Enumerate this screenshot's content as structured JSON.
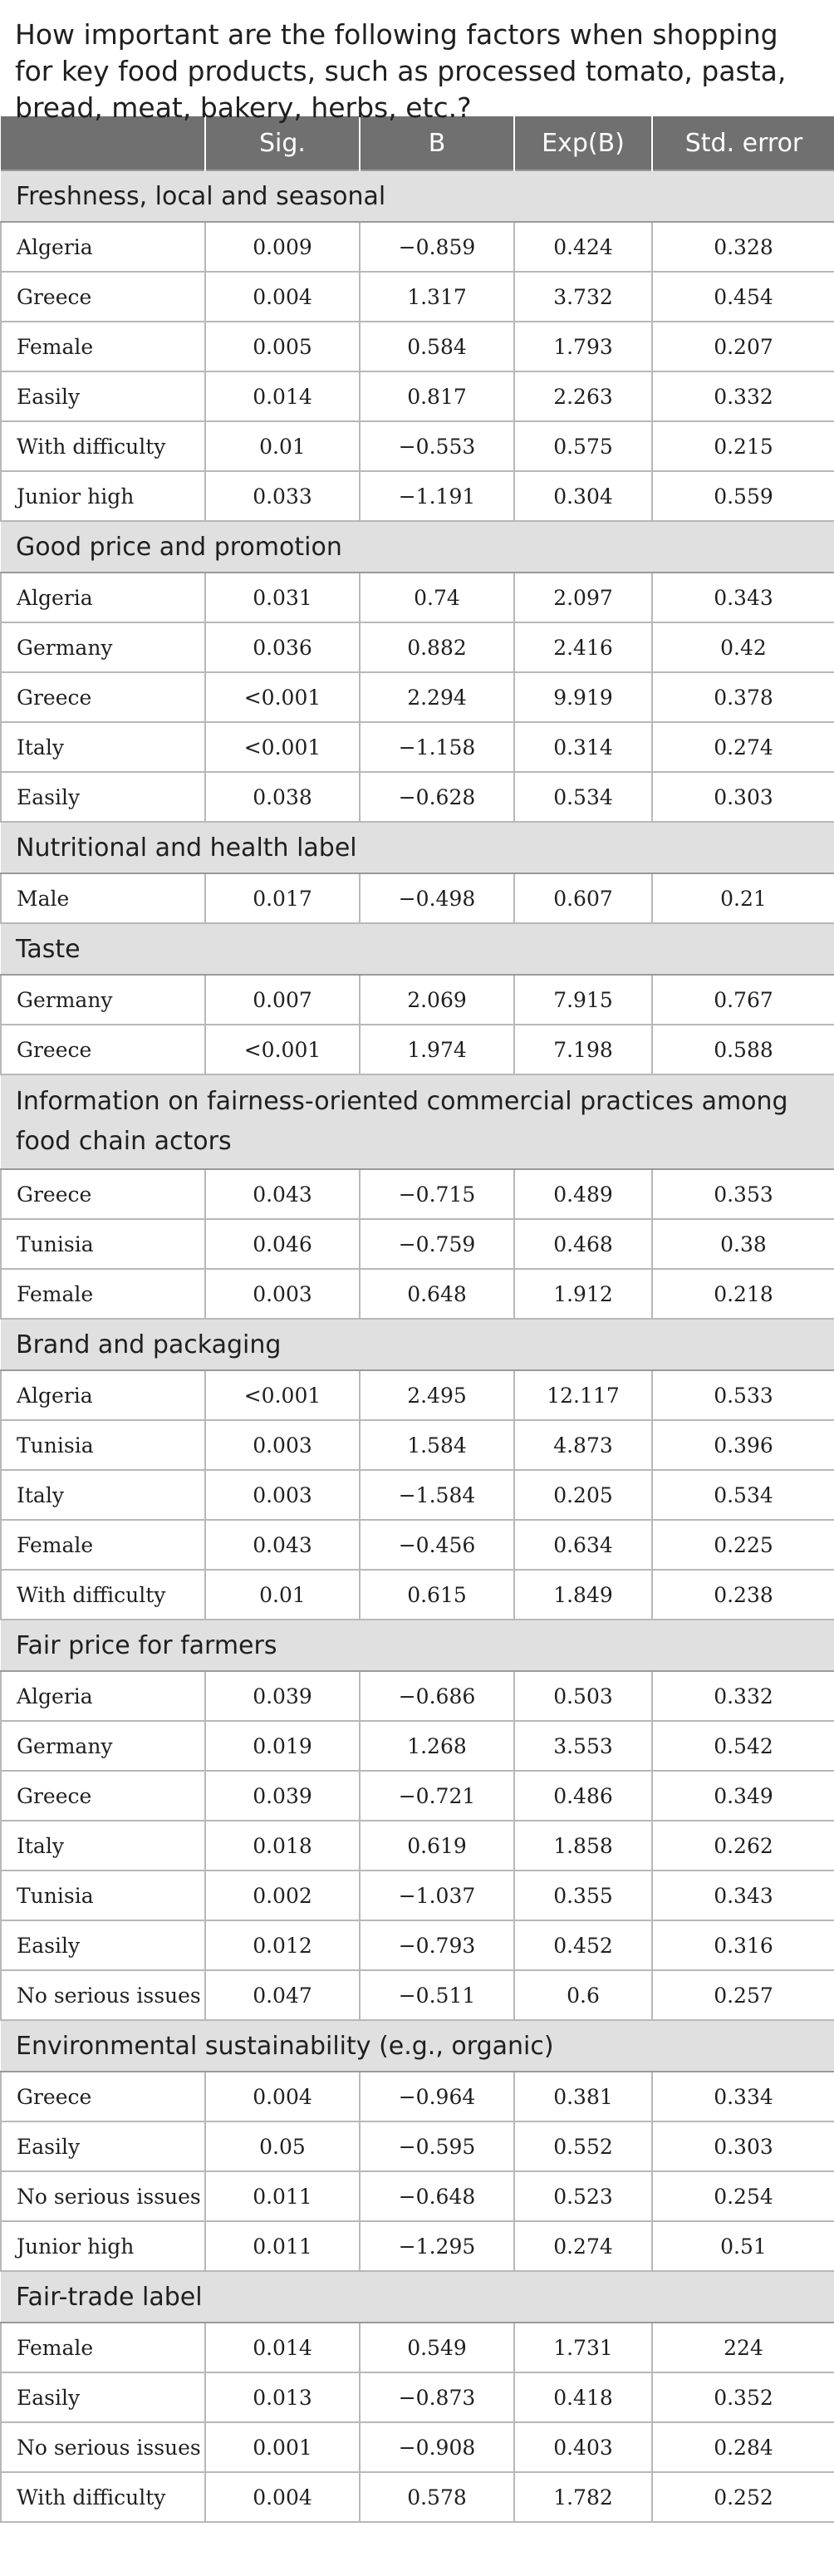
{
  "title": "How important are the following factors when shopping for key food products, such as processed tomato, pasta, bread, meat, bakery, herbs, etc.?",
  "headers": [
    "",
    "Sig.",
    "B",
    "Exp(B)",
    "Std. error"
  ],
  "sections": [
    {
      "name": "Freshness, local and seasonal",
      "rows": [
        [
          "Algeria",
          "0.009",
          "−0.859",
          "0.424",
          "0.328"
        ],
        [
          "Greece",
          "0.004",
          "1.317",
          "3.732",
          "0.454"
        ],
        [
          "Female",
          "0.005",
          "0.584",
          "1.793",
          "0.207"
        ],
        [
          "Easily",
          "0.014",
          "0.817",
          "2.263",
          "0.332"
        ],
        [
          "With difficulty",
          "0.01",
          "−0.553",
          "0.575",
          "0.215"
        ],
        [
          "Junior high",
          "0.033",
          "−1.191",
          "0.304",
          "0.559"
        ]
      ]
    },
    {
      "name": "Good price and promotion",
      "rows": [
        [
          "Algeria",
          "0.031",
          "0.74",
          "2.097",
          "0.343"
        ],
        [
          "Germany",
          "0.036",
          "0.882",
          "2.416",
          "0.42"
        ],
        [
          "Greece",
          "<0.001",
          "2.294",
          "9.919",
          "0.378"
        ],
        [
          "Italy",
          "<0.001",
          "−1.158",
          "0.314",
          "0.274"
        ],
        [
          "Easily",
          "0.038",
          "−0.628",
          "0.534",
          "0.303"
        ]
      ]
    },
    {
      "name": "Nutritional and health label",
      "rows": [
        [
          "Male",
          "0.017",
          "−0.498",
          "0.607",
          "0.21"
        ]
      ]
    },
    {
      "name": "Taste",
      "rows": [
        [
          "Germany",
          "0.007",
          "2.069",
          "7.915",
          "0.767"
        ],
        [
          "Greece",
          "<0.001",
          "1.974",
          "7.198",
          "0.588"
        ]
      ]
    },
    {
      "name": "Information on fairness-oriented commercial practices among food chain actors",
      "rows": [
        [
          "Greece",
          "0.043",
          "−0.715",
          "0.489",
          "0.353"
        ],
        [
          "Tunisia",
          "0.046",
          "−0.759",
          "0.468",
          "0.38"
        ],
        [
          "Female",
          "0.003",
          "0.648",
          "1.912",
          "0.218"
        ]
      ]
    },
    {
      "name": "Brand and packaging",
      "rows": [
        [
          "Algeria",
          "<0.001",
          "2.495",
          "12.117",
          "0.533"
        ],
        [
          "Tunisia",
          "0.003",
          "1.584",
          "4.873",
          "0.396"
        ],
        [
          "Italy",
          "0.003",
          "−1.584",
          "0.205",
          "0.534"
        ],
        [
          "Female",
          "0.043",
          "−0.456",
          "0.634",
          "0.225"
        ],
        [
          "With difficulty",
          "0.01",
          "0.615",
          "1.849",
          "0.238"
        ]
      ]
    },
    {
      "name": "Fair price for farmers",
      "rows": [
        [
          "Algeria",
          "0.039",
          "−0.686",
          "0.503",
          "0.332"
        ],
        [
          "Germany",
          "0.019",
          "1.268",
          "3.553",
          "0.542"
        ],
        [
          "Greece",
          "0.039",
          "−0.721",
          "0.486",
          "0.349"
        ],
        [
          "Italy",
          "0.018",
          "0.619",
          "1.858",
          "0.262"
        ],
        [
          "Tunisia",
          "0.002",
          "−1.037",
          "0.355",
          "0.343"
        ],
        [
          "Easily",
          "0.012",
          "−0.793",
          "0.452",
          "0.316"
        ],
        [
          "No serious issues",
          "0.047",
          "−0.511",
          "0.6",
          "0.257"
        ]
      ]
    },
    {
      "name": "Environmental sustainability (e.g., organic)",
      "rows": [
        [
          "Greece",
          "0.004",
          "−0.964",
          "0.381",
          "0.334"
        ],
        [
          "Easily",
          "0.05",
          "−0.595",
          "0.552",
          "0.303"
        ],
        [
          "No serious issues",
          "0.011",
          "−0.648",
          "0.523",
          "0.254"
        ],
        [
          "Junior high",
          "0.011",
          "−1.295",
          "0.274",
          "0.51"
        ]
      ]
    },
    {
      "name": "Fair-trade label",
      "rows": [
        [
          "Female",
          "0.014",
          "0.549",
          "1.731",
          "224"
        ],
        [
          "Easily",
          "0.013",
          "−0.873",
          "0.418",
          "0.352"
        ],
        [
          "No serious issues",
          "0.001",
          "−0.908",
          "0.403",
          "0.284"
        ],
        [
          "With difficulty",
          "0.004",
          "0.578",
          "1.782",
          "0.252"
        ]
      ]
    }
  ]
}
